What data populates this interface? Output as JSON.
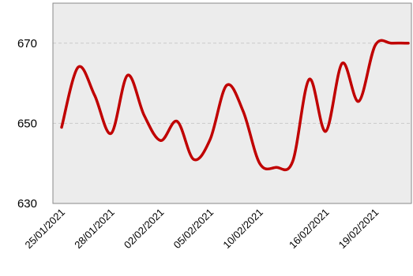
{
  "chart_data": {
    "type": "line",
    "title": "",
    "xlabel": "",
    "ylabel": "",
    "x": [
      "25/01/2021",
      "26/01/2021",
      "27/01/2021",
      "28/01/2021",
      "29/01/2021",
      "01/02/2021",
      "02/02/2021",
      "03/02/2021",
      "04/02/2021",
      "05/02/2021",
      "08/02/2021",
      "09/02/2021",
      "10/02/2021",
      "11/02/2021",
      "12/02/2021",
      "15/02/2021",
      "16/02/2021",
      "17/02/2021",
      "18/02/2021",
      "19/02/2021",
      "22/02/2021",
      "23/02/2021"
    ],
    "xtick_labels": [
      "25/01/2021",
      "28/01/2021",
      "02/02/2021",
      "05/02/2021",
      "10/02/2021",
      "16/02/2021",
      "19/02/2021"
    ],
    "series": [
      {
        "values": [
          649,
          664,
          657,
          647.5,
          662,
          652,
          645.7,
          650.5,
          641,
          646,
          659.5,
          653,
          640,
          639,
          640.5,
          661,
          648,
          665,
          655.5,
          669.5,
          670,
          670
        ]
      }
    ],
    "ylim": [
      630,
      680
    ],
    "yticks": [
      630,
      650,
      670
    ],
    "grid": "horizontal-dashed",
    "colors": {
      "line": "#c00000",
      "plot_background": "#ececec",
      "gridline": "#c9c9c9",
      "frame": "#888888"
    }
  }
}
